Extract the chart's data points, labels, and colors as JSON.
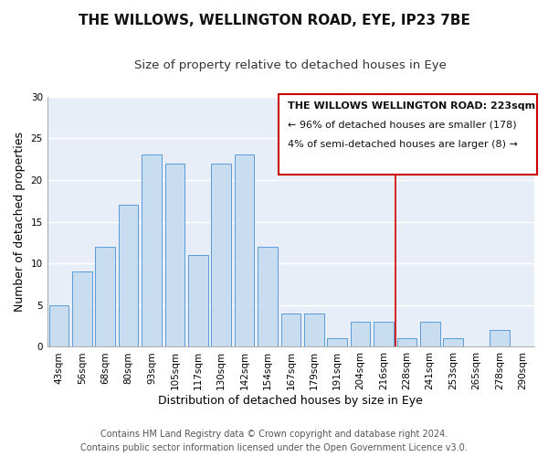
{
  "title": "THE WILLOWS, WELLINGTON ROAD, EYE, IP23 7BE",
  "subtitle": "Size of property relative to detached houses in Eye",
  "xlabel": "Distribution of detached houses by size in Eye",
  "ylabel": "Number of detached properties",
  "bar_labels": [
    "43sqm",
    "56sqm",
    "68sqm",
    "80sqm",
    "93sqm",
    "105sqm",
    "117sqm",
    "130sqm",
    "142sqm",
    "154sqm",
    "167sqm",
    "179sqm",
    "191sqm",
    "204sqm",
    "216sqm",
    "228sqm",
    "241sqm",
    "253sqm",
    "265sqm",
    "278sqm",
    "290sqm"
  ],
  "bar_values": [
    5,
    9,
    12,
    17,
    23,
    22,
    11,
    22,
    23,
    12,
    4,
    4,
    1,
    3,
    3,
    1,
    3,
    1,
    0,
    2,
    0
  ],
  "bar_color": "#c9ddf0",
  "bar_edgecolor": "#5b9bd5",
  "ylim": [
    0,
    30
  ],
  "yticks": [
    0,
    5,
    10,
    15,
    20,
    25,
    30
  ],
  "vline_color": "#cc0000",
  "vline_bar_index": 15,
  "annotation_title": "THE WILLOWS WELLINGTON ROAD: 223sqm",
  "annotation_line1": "← 96% of detached houses are smaller (178)",
  "annotation_line2": "4% of semi-detached houses are larger (8) →",
  "footnote1": "Contains HM Land Registry data © Crown copyright and database right 2024.",
  "footnote2": "Contains public sector information licensed under the Open Government Licence v3.0.",
  "plot_bg_color": "#e8eef8",
  "fig_bg_color": "#ffffff",
  "grid_color": "#ffffff",
  "title_fontsize": 11,
  "subtitle_fontsize": 9.5,
  "axis_label_fontsize": 9,
  "tick_fontsize": 7.5,
  "annotation_fontsize": 8,
  "footnote_fontsize": 7
}
